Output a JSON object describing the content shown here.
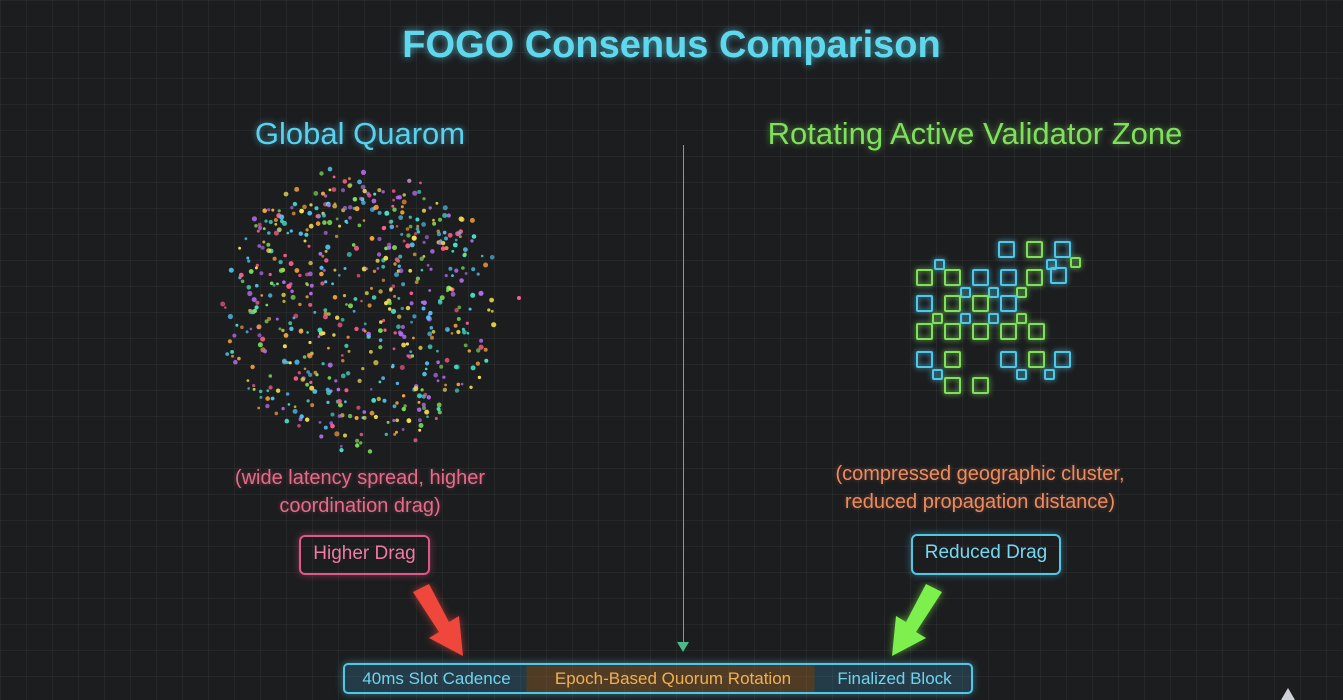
{
  "title": "FOGO Consenus Comparison",
  "left": {
    "heading": "Global Quarom",
    "caption_line1": "(wide latency spread, higher",
    "caption_line2": "coordination drag)",
    "badge": "Higher Drag"
  },
  "right": {
    "heading": "Rotating Active Validator Zone",
    "caption_line1": "(compressed geographic cluster,",
    "caption_line2": "reduced propagation distance)",
    "badge": "Reduced Drag"
  },
  "timeline": {
    "segment1": "40ms Slot Cadence",
    "segment2": "Epoch-Based Quorum Rotation",
    "segment3": "Finalized Block"
  },
  "colors": {
    "title": "#5fd8ee",
    "left_heading": "#58d2ef",
    "right_heading": "#7fe05c",
    "higher_drag": "#e0578a",
    "reduced_drag": "#4fc8e8",
    "red_arrow": "#f0473c",
    "green_arrow": "#7ef04e",
    "dot_palette": [
      "#4ec3f0",
      "#ff5c8a",
      "#f6a33b",
      "#7ee05a",
      "#b56cf0",
      "#f5e050",
      "#45e0c8"
    ]
  }
}
